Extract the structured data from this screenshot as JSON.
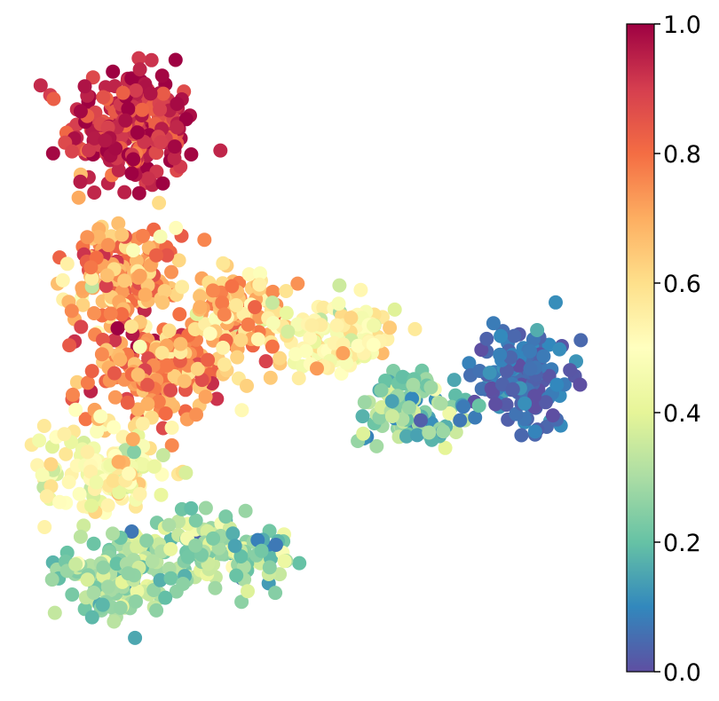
{
  "chart_data": {
    "type": "scatter",
    "title": "",
    "xlabel": "",
    "ylabel": "",
    "axes_visible": false,
    "colormap": "Spectral_r",
    "colormap_stops": [
      "#5e4fa2",
      "#3288bd",
      "#66c2a5",
      "#abdda4",
      "#e6f598",
      "#ffffbf",
      "#fee08b",
      "#fdae61",
      "#f46d43",
      "#d53e4f",
      "#9e0142"
    ],
    "colorbar": {
      "range": [
        0.0,
        1.0
      ],
      "ticks": [
        0.0,
        0.2,
        0.4,
        0.6,
        0.8,
        1.0
      ],
      "tick_labels": [
        "0.0",
        "0.2",
        "0.4",
        "0.6",
        "0.8",
        "1.0"
      ],
      "location": "right"
    },
    "xlim": [
      0,
      100
    ],
    "ylim": [
      0,
      100
    ],
    "clusters": [
      {
        "region": "top-left lobe",
        "center": [
          17,
          86
        ],
        "spread": [
          8,
          7
        ],
        "count": 260,
        "value_mean": 0.92,
        "value_sd": 0.06
      },
      {
        "region": "upper-middle left",
        "center": [
          15,
          62
        ],
        "spread": [
          7,
          6
        ],
        "count": 180,
        "value_mean": 0.72,
        "value_sd": 0.1
      },
      {
        "region": "middle left",
        "center": [
          22,
          46
        ],
        "spread": [
          9,
          6
        ],
        "count": 200,
        "value_mean": 0.74,
        "value_sd": 0.1
      },
      {
        "region": "center",
        "center": [
          36,
          55
        ],
        "spread": [
          7,
          6
        ],
        "count": 120,
        "value_mean": 0.66,
        "value_sd": 0.1
      },
      {
        "region": "lower-middle left",
        "center": [
          13,
          30
        ],
        "spread": [
          8,
          6
        ],
        "count": 160,
        "value_mean": 0.5,
        "value_sd": 0.08
      },
      {
        "region": "lower left",
        "center": [
          14,
          12
        ],
        "spread": [
          7,
          5
        ],
        "count": 140,
        "value_mean": 0.3,
        "value_sd": 0.08
      },
      {
        "region": "bottom arm",
        "center": [
          33,
          16
        ],
        "spread": [
          9,
          4
        ],
        "count": 120,
        "value_mean": 0.28,
        "value_sd": 0.1
      },
      {
        "region": "bridge",
        "center": [
          53,
          52
        ],
        "spread": [
          8,
          4
        ],
        "count": 110,
        "value_mean": 0.5,
        "value_sd": 0.08
      },
      {
        "region": "right arm",
        "center": [
          66,
          40
        ],
        "spread": [
          7,
          5
        ],
        "count": 110,
        "value_mean": 0.24,
        "value_sd": 0.08
      },
      {
        "region": "far-right lobe",
        "center": [
          86,
          45
        ],
        "spread": [
          6,
          6
        ],
        "count": 150,
        "value_mean": 0.06,
        "value_sd": 0.04
      }
    ]
  }
}
